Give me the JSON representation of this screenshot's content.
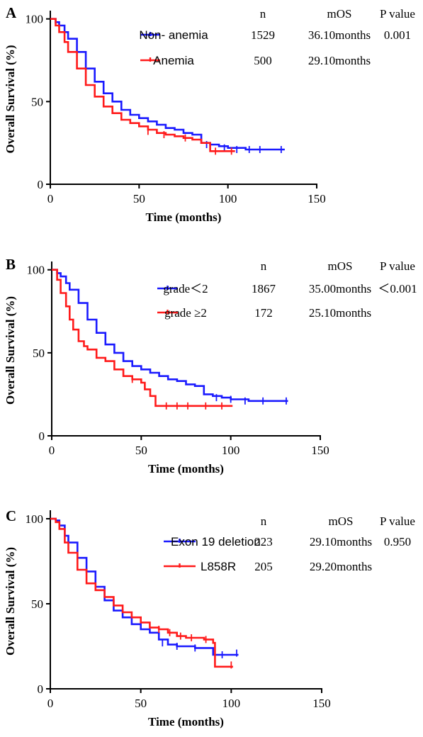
{
  "colors": {
    "blue": "#1a1aff",
    "red": "#ff1a1a"
  },
  "chart_data": [
    {
      "type": "line",
      "panel": "A",
      "ylabel": "Overall Survival (%)",
      "xlabel": "Time (months)",
      "xlim": [
        0,
        150
      ],
      "ylim": [
        0,
        105
      ],
      "xticks": [
        "0",
        "50",
        "100",
        "150"
      ],
      "yticks": [
        "0",
        "50",
        "100"
      ],
      "table_headers": {
        "n": "n",
        "mos": "mOS",
        "p": "P value"
      },
      "p_value": "0.001",
      "series": [
        {
          "name": "Non- anemia",
          "n": "1529",
          "mos": "36.10months",
          "color": "blue",
          "x": [
            0,
            3,
            5,
            8,
            10,
            15,
            20,
            25,
            30,
            35,
            40,
            45,
            50,
            55,
            60,
            65,
            70,
            75,
            80,
            85,
            90,
            95,
            100,
            110,
            120,
            132
          ],
          "y": [
            100,
            98,
            96,
            92,
            88,
            80,
            70,
            62,
            55,
            50,
            45,
            42,
            40,
            38,
            36,
            34,
            33,
            31,
            30,
            25,
            24,
            23,
            22,
            21,
            21,
            21
          ],
          "censors": [
            [
              88,
              24
            ],
            [
              98,
              22
            ],
            [
              105,
              21
            ],
            [
              112,
              21
            ],
            [
              118,
              21
            ],
            [
              130,
              21
            ]
          ]
        },
        {
          "name": "Anemia",
          "n": "500",
          "mos": "29.10months",
          "color": "red",
          "x": [
            0,
            3,
            5,
            8,
            10,
            15,
            20,
            25,
            30,
            35,
            40,
            45,
            50,
            55,
            60,
            65,
            70,
            75,
            80,
            85,
            90,
            95,
            100,
            104
          ],
          "y": [
            100,
            96,
            92,
            86,
            80,
            70,
            60,
            53,
            47,
            43,
            39,
            37,
            35,
            33,
            31,
            30,
            29,
            28,
            27,
            25,
            20,
            20,
            20,
            20
          ],
          "censors": [
            [
              55,
              32
            ],
            [
              64,
              30
            ],
            [
              76,
              28
            ],
            [
              93,
              20
            ],
            [
              102,
              20
            ]
          ]
        }
      ]
    },
    {
      "type": "line",
      "panel": "B",
      "ylabel": "Overall Survival (%)",
      "xlabel": "Time (months)",
      "xlim": [
        0,
        150
      ],
      "ylim": [
        0,
        105
      ],
      "xticks": [
        "0",
        "50",
        "100",
        "150"
      ],
      "yticks": [
        "0",
        "50",
        "100"
      ],
      "table_headers": {
        "n": "n",
        "mos": "mOS",
        "p": "P value"
      },
      "p_value": "＜0.001",
      "series": [
        {
          "name": "grade＜2",
          "n": "1867",
          "mos": "35.00months",
          "color": "blue",
          "x": [
            0,
            3,
            5,
            8,
            10,
            15,
            20,
            25,
            30,
            35,
            40,
            45,
            50,
            55,
            60,
            65,
            70,
            75,
            80,
            85,
            90,
            95,
            100,
            110,
            120,
            132
          ],
          "y": [
            100,
            98,
            96,
            92,
            88,
            80,
            70,
            62,
            55,
            50,
            45,
            42,
            40,
            38,
            36,
            34,
            33,
            31,
            30,
            25,
            24,
            23,
            22,
            21,
            21,
            21
          ],
          "censors": [
            [
              92,
              23
            ],
            [
              100,
              22
            ],
            [
              108,
              21
            ],
            [
              118,
              21
            ],
            [
              131,
              21
            ]
          ]
        },
        {
          "name": "grade ≥2",
          "n": "172",
          "mos": "25.10months",
          "color": "red",
          "x": [
            0,
            3,
            5,
            8,
            10,
            12,
            15,
            18,
            20,
            25,
            30,
            35,
            40,
            45,
            50,
            52,
            55,
            58,
            60,
            70,
            80,
            90,
            100,
            101
          ],
          "y": [
            100,
            94,
            86,
            78,
            70,
            64,
            57,
            54,
            52,
            47,
            45,
            40,
            36,
            34,
            32,
            28,
            24,
            18,
            18,
            18,
            18,
            18,
            18,
            18
          ],
          "censors": [
            [
              45,
              34
            ],
            [
              64,
              18
            ],
            [
              70,
              18
            ],
            [
              76,
              18
            ],
            [
              86,
              18
            ],
            [
              95,
              18
            ]
          ]
        }
      ]
    },
    {
      "type": "line",
      "panel": "C",
      "ylabel": "Overall Survival (%)",
      "xlabel": "Time (months)",
      "xlim": [
        0,
        150
      ],
      "ylim": [
        0,
        105
      ],
      "xticks": [
        "0",
        "50",
        "100",
        "150"
      ],
      "yticks": [
        "0",
        "50",
        "100"
      ],
      "table_headers": {
        "n": "n",
        "mos": "mOS",
        "p": "P value"
      },
      "p_value": "0.950",
      "series": [
        {
          "name": "Exon 19 deletion",
          "n": "223",
          "mos": "29.10months",
          "color": "blue",
          "x": [
            0,
            3,
            5,
            8,
            10,
            15,
            20,
            25,
            30,
            35,
            40,
            45,
            50,
            55,
            60,
            65,
            70,
            75,
            80,
            85,
            90,
            95,
            100,
            104
          ],
          "y": [
            100,
            99,
            96,
            90,
            86,
            77,
            69,
            60,
            52,
            46,
            42,
            38,
            35,
            33,
            29,
            26,
            25,
            25,
            24,
            24,
            20,
            20,
            20,
            20
          ],
          "censors": [
            [
              62,
              27
            ],
            [
              70,
              25
            ],
            [
              80,
              24
            ],
            [
              95,
              20
            ],
            [
              103,
              21
            ]
          ]
        },
        {
          "name": "L858R",
          "n": "205",
          "mos": "29.20months",
          "color": "red",
          "x": [
            0,
            3,
            5,
            8,
            10,
            15,
            20,
            25,
            30,
            35,
            40,
            45,
            50,
            55,
            60,
            65,
            70,
            75,
            80,
            85,
            90,
            91,
            95,
            100,
            101
          ],
          "y": [
            100,
            98,
            94,
            86,
            80,
            70,
            62,
            58,
            54,
            49,
            45,
            42,
            39,
            36,
            35,
            33,
            31,
            30,
            30,
            29,
            27,
            13,
            13,
            13,
            13
          ],
          "censors": [
            [
              60,
              35
            ],
            [
              66,
              33
            ],
            [
              72,
              31
            ],
            [
              78,
              30
            ],
            [
              86,
              29
            ],
            [
              100,
              14
            ]
          ]
        }
      ]
    }
  ]
}
